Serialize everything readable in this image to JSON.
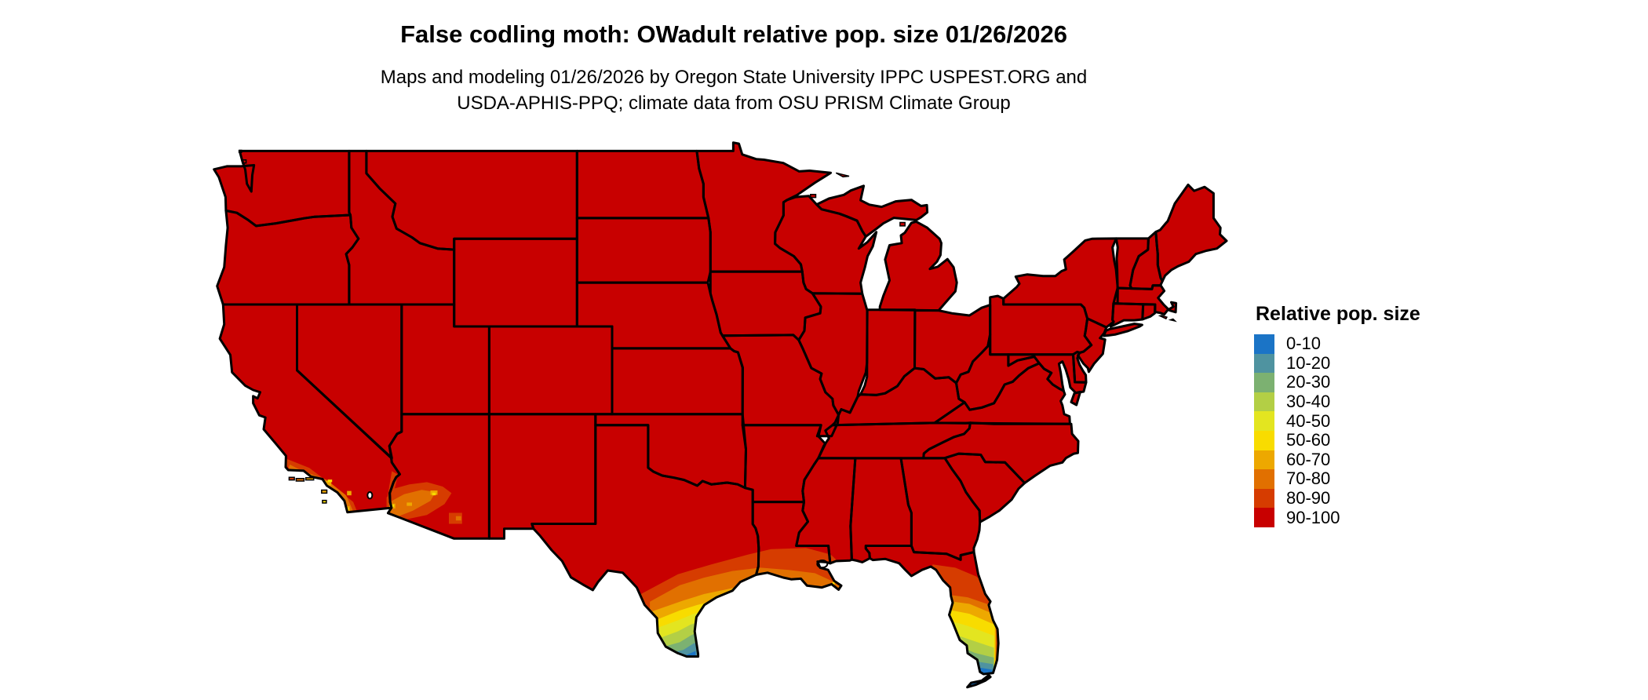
{
  "header": {
    "title": "False codling moth: OWadult relative pop. size 01/26/2026",
    "subtitle_line1": "Maps and modeling 01/26/2026 by Oregon State University IPPC USPEST.ORG and",
    "subtitle_line2": "USDA-APHIS-PPQ; climate data from OSU PRISM Climate Group"
  },
  "legend": {
    "title": "Relative pop. size",
    "items": [
      {
        "label": "0-10",
        "color": "#1b74c6"
      },
      {
        "label": "10-20",
        "color": "#4f93a0"
      },
      {
        "label": "20-30",
        "color": "#7cb171"
      },
      {
        "label": "30-40",
        "color": "#b3cf45"
      },
      {
        "label": "40-50",
        "color": "#e3e520"
      },
      {
        "label": "50-60",
        "color": "#f8dc00"
      },
      {
        "label": "60-70",
        "color": "#eda800"
      },
      {
        "label": "70-80",
        "color": "#e17000"
      },
      {
        "label": "80-90",
        "color": "#d63c00"
      },
      {
        "label": "90-100",
        "color": "#c80000"
      }
    ]
  },
  "map": {
    "background": "#ffffff",
    "border_color": "#000000",
    "base_bucket": "90-100",
    "base_color": "#c80000"
  },
  "chart_data": {
    "type": "choropleth_map",
    "title": "False codling moth: OWadult relative pop. size 01/26/2026",
    "geography": "Conterminous United States with state borders",
    "projection": "equirectangular lon/lat, approx -124.9 to -66.9 lon, 24.4 to 49.8 lat",
    "legend_title": "Relative pop. size",
    "legend_position": "right",
    "buckets": [
      {
        "range": "0-10",
        "color": "#1b74c6"
      },
      {
        "range": "10-20",
        "color": "#4f93a0"
      },
      {
        "range": "20-30",
        "color": "#7cb171"
      },
      {
        "range": "30-40",
        "color": "#b3cf45"
      },
      {
        "range": "40-50",
        "color": "#e3e520"
      },
      {
        "range": "50-60",
        "color": "#f8dc00"
      },
      {
        "range": "60-70",
        "color": "#eda800"
      },
      {
        "range": "70-80",
        "color": "#e17000"
      },
      {
        "range": "80-90",
        "color": "#d63c00"
      },
      {
        "range": "90-100",
        "color": "#c80000"
      }
    ],
    "base_value": "90-100 over nearly the entire conterminous US",
    "gradient_regions": [
      {
        "region": "Southern Florida peninsula",
        "values": "80-90 near Ocala grading through yellow/green to 0-10 at Miami and the Florida Keys"
      },
      {
        "region": "Southern Texas / Lower Rio Grande Valley",
        "values": "80-90 near San Antonio grading through yellow/green to 0-10 at the Brownsville tip"
      },
      {
        "region": "Gulf Coast from Texas through Louisiana, Mississippi, Alabama to the Florida panhandle",
        "values": "70-80 and 80-90 along the immediate coast"
      },
      {
        "region": "Southern California coast and Channel Islands",
        "values": "patches of 50-60 to 80-90"
      },
      {
        "region": "Southwestern Arizona (Yuma-Phoenix, lower Colorado River)",
        "values": "patches of 50-60 to 80-90"
      }
    ]
  }
}
